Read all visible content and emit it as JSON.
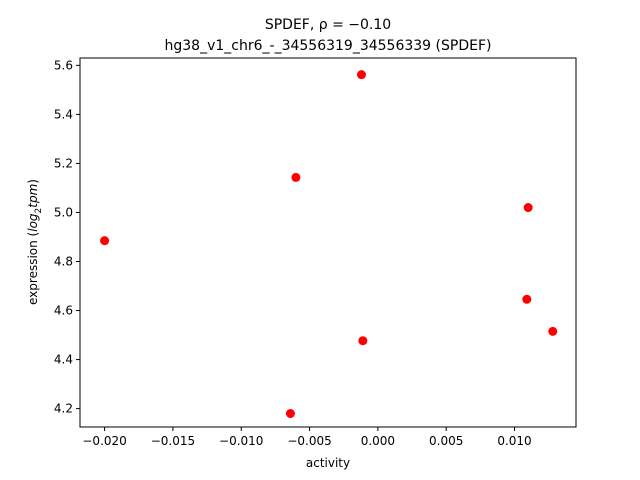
{
  "chart_data": {
    "type": "scatter",
    "title": "SPDEF, ρ = −0.10",
    "subtitle": "hg38_v1_chr6_-_34556319_34556339 (SPDEF)",
    "xlabel": "activity",
    "ylabel_main": "expression (",
    "ylabel_italic": "log",
    "ylabel_sub": "2",
    "ylabel_italic2": "tpm",
    "ylabel_end": ")",
    "xlim": [
      -0.0218,
      0.0145
    ],
    "ylim": [
      4.125,
      5.63
    ],
    "x_ticks": [
      -0.02,
      -0.015,
      -0.01,
      -0.005,
      0.0,
      0.005,
      0.01
    ],
    "x_tick_labels": [
      "−0.020",
      "−0.015",
      "−0.010",
      "−0.005",
      "0.000",
      "0.005",
      "0.010"
    ],
    "y_ticks": [
      4.2,
      4.4,
      4.6,
      4.8,
      5.0,
      5.2,
      5.4,
      5.6
    ],
    "y_tick_labels": [
      "4.2",
      "4.4",
      "4.6",
      "4.8",
      "5.0",
      "5.2",
      "5.4",
      "5.6"
    ],
    "grid": false,
    "marker_color": "#ff0000",
    "points": [
      {
        "x": -0.02,
        "y": 4.885
      },
      {
        "x": -0.0064,
        "y": 4.18
      },
      {
        "x": -0.006,
        "y": 5.143
      },
      {
        "x": -0.0012,
        "y": 5.562
      },
      {
        "x": -0.0011,
        "y": 4.477
      },
      {
        "x": 0.0109,
        "y": 4.646
      },
      {
        "x": 0.011,
        "y": 5.02
      },
      {
        "x": 0.0128,
        "y": 4.515
      }
    ]
  }
}
